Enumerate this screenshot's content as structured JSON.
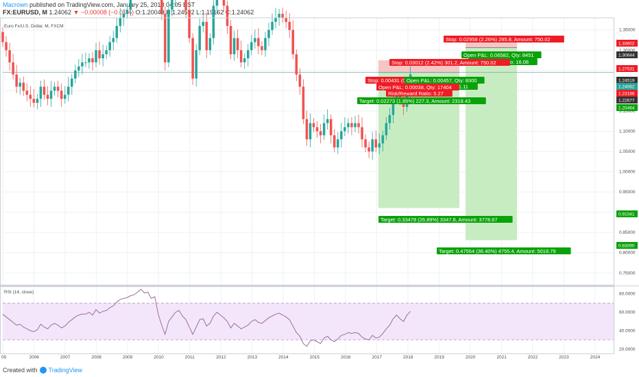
{
  "header": {
    "author": "Macrown",
    "published": "published on TradingView.com, January 25, 2018 04:05 EST",
    "symbol": "FX:EURUSD, M",
    "last": "1.24062",
    "change": "−0.00008 (−0.01%)",
    "ohlc": "O:1.20049 H:1.24592 L:1.19162 C:1.24062"
  },
  "footer": {
    "created_with": "Created with",
    "brand": "TradingView"
  },
  "colors": {
    "up": "#26a69a",
    "down": "#ef5350",
    "target_zone": "#c8ecc2",
    "stop_zone": "#f7c6c4",
    "rsi_band": "#f3e6fb",
    "rsi_line": "#9c6c9c",
    "label_red": "#ee1c25",
    "label_green": "#0aa20a"
  },
  "chart_data": [
    {
      "type": "candlestick",
      "title": "Euro Fx/U.S. Dollar, M, FXCM",
      "x_ticks": [
        "05",
        "2006",
        "2007",
        "2008",
        "2009",
        "2010",
        "2011",
        "2012",
        "2013",
        "2014",
        "2015",
        "2016",
        "2017",
        "2018",
        "2019",
        "2020",
        "2021",
        "2022",
        "2023",
        "2024"
      ],
      "y_ticks": [
        "1.35000",
        "1.30000",
        "1.25000",
        "1.20000",
        "1.15000",
        "1.10000",
        "1.05000",
        "1.00000",
        "0.95000",
        "0.90000",
        "0.85000",
        "0.80000",
        "0.75000"
      ],
      "ylim": [
        0.72,
        1.38
      ],
      "price_tags": [
        {
          "value": "1.33602",
          "color": "#ee1c25"
        },
        {
          "value": "1.30644",
          "color": "#333333"
        },
        {
          "value": "1.27531",
          "color": "#ee1c25"
        },
        {
          "value": "1.24519",
          "color": "#333333"
        },
        {
          "value": "1.24062",
          "color": "#26a69a"
        },
        {
          "value": "1.23188",
          "color": "#ee1c25"
        },
        {
          "value": "1.22677",
          "color": "#333333"
        },
        {
          "value": "1.20464",
          "color": "#0aa20a"
        },
        {
          "value": "0.91041",
          "color": "#0aa20a"
        },
        {
          "value": "0.83090",
          "color": "#0aa20a"
        }
      ],
      "positions": [
        {
          "entry": 1.2452,
          "stop": 1.2753,
          "target": 0.9104,
          "start": 2017.05,
          "end": 2019.65
        },
        {
          "entry": 1.3064,
          "stop": 1.336,
          "target": 0.8309,
          "start": 2019.85,
          "end": 2021.5
        }
      ],
      "labels": [
        {
          "text": "Stop: 0.02958 (2.26%) 295.8, Amount: 750.02",
          "kind": "red"
        },
        {
          "text": "Open P&L: 0.06582, Qty: 8451",
          "kind": "green"
        },
        {
          "text": "Risk/Reward Ratio: 16.08",
          "kind": "green"
        },
        {
          "text": "Stop: 0.03012 (2.42%) 301.2, Amount: 750.02",
          "kind": "red"
        },
        {
          "text": "Stop: 0.00431 (0.35%) 43.1, Amount: 750.02",
          "kind": "red"
        },
        {
          "text": "Open P&L: 0.00457, Qty: 8300",
          "kind": "green"
        },
        {
          "text": "Risk/Reward Ratio: 11.11",
          "kind": "green"
        },
        {
          "text": "Open P&L: 0.00038, Qty: 17404",
          "kind": "red"
        },
        {
          "text": "Risk/Reward Ratio: 5.27",
          "kind": "red"
        },
        {
          "text": "Target: 0.02273 (1.85%) 227.3, Amount: 2318.43",
          "kind": "green"
        },
        {
          "text": "Target: 0.33478 (26.89%) 3347.8, Amount: 3778.67",
          "kind": "green"
        },
        {
          "text": "Target: 0.47554 (36.40%) 4755.4, Amount: 5018.79",
          "kind": "green"
        }
      ],
      "series": [
        {
          "name": "EURUSD",
          "close": [
            1.32,
            1.3,
            1.27,
            1.24,
            1.21,
            1.22,
            1.2,
            1.19,
            1.18,
            1.17,
            1.18,
            1.21,
            1.19,
            1.18,
            1.2,
            1.21,
            1.2,
            1.18,
            1.19,
            1.21,
            1.23,
            1.25,
            1.26,
            1.27,
            1.27,
            1.28,
            1.27,
            1.3,
            1.28,
            1.29,
            1.3,
            1.32,
            1.33,
            1.36,
            1.38,
            1.39,
            1.4,
            1.46,
            1.5,
            1.55,
            1.59,
            1.57,
            1.58,
            1.54,
            1.56,
            1.47,
            1.39,
            1.27,
            1.4,
            1.43,
            1.48,
            1.5,
            1.45,
            1.4,
            1.33,
            1.23,
            1.3,
            1.36,
            1.37,
            1.3,
            1.33,
            1.41,
            1.47,
            1.44,
            1.41,
            1.36,
            1.29,
            1.33,
            1.3,
            1.27,
            1.28,
            1.3,
            1.32,
            1.33,
            1.31,
            1.3,
            1.33,
            1.35,
            1.37,
            1.38,
            1.39,
            1.38,
            1.37,
            1.35,
            1.29,
            1.24,
            1.21,
            1.13,
            1.08,
            1.12,
            1.11,
            1.1,
            1.09,
            1.12,
            1.13,
            1.09,
            1.06,
            1.08,
            1.1,
            1.11,
            1.12,
            1.11,
            1.12,
            1.11,
            1.08,
            1.06,
            1.05,
            1.08,
            1.06,
            1.07,
            1.09,
            1.12,
            1.14,
            1.18,
            1.2,
            1.18,
            1.16,
            1.2,
            1.2406
          ]
        }
      ]
    },
    {
      "type": "line",
      "title": "RSI (14, close)",
      "y_ticks": [
        "80.0000",
        "60.0000",
        "40.0000",
        "20.0000"
      ],
      "ylim": [
        15,
        88
      ],
      "band": [
        30,
        70
      ],
      "series": [
        {
          "name": "RSI",
          "values": [
            58,
            55,
            52,
            49,
            46,
            47,
            44,
            42,
            40,
            39,
            41,
            47,
            44,
            42,
            46,
            48,
            46,
            43,
            45,
            49,
            52,
            55,
            57,
            58,
            58,
            60,
            57,
            63,
            59,
            61,
            62,
            65,
            67,
            71,
            74,
            75,
            76,
            78,
            79,
            82,
            85,
            81,
            82,
            75,
            77,
            58,
            46,
            36,
            50,
            55,
            60,
            62,
            56,
            52,
            44,
            36,
            44,
            52,
            53,
            45,
            48,
            56,
            60,
            57,
            54,
            50,
            43,
            48,
            45,
            42,
            44,
            46,
            50,
            52,
            49,
            48,
            51,
            54,
            56,
            58,
            59,
            57,
            55,
            52,
            45,
            38,
            34,
            26,
            23,
            29,
            30,
            28,
            26,
            32,
            34,
            30,
            28,
            31,
            35,
            36,
            38,
            37,
            38,
            37,
            33,
            31,
            30,
            35,
            32,
            33,
            37,
            42,
            46,
            53,
            57,
            53,
            50,
            57,
            61
          ]
        }
      ]
    }
  ]
}
